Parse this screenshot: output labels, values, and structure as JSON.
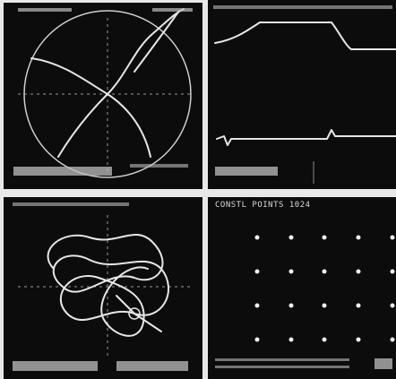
{
  "panels": [
    {
      "title": "CONSTL  POINTS  1024"
    }
  ]
}
